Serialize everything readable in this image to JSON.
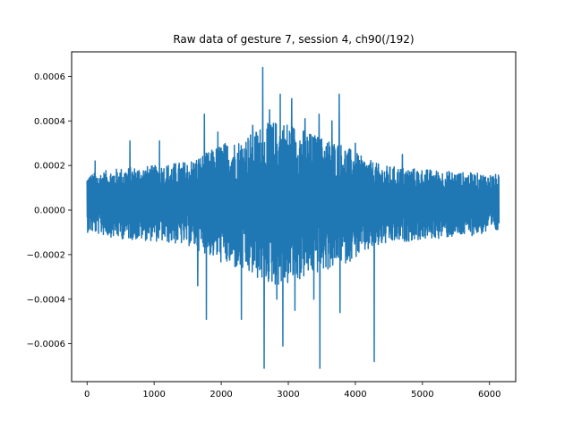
{
  "chart_data": {
    "type": "line",
    "title": "Raw data of gesture 7, session 4, ch90(/192)",
    "xlabel": "",
    "ylabel": "",
    "xlim": [
      -230,
      6390
    ],
    "ylim": [
      -0.00077,
      0.00071
    ],
    "grid": false,
    "legend": "none",
    "x_ticks": [
      {
        "value": 0,
        "label": "0"
      },
      {
        "value": 1000,
        "label": "1000"
      },
      {
        "value": 2000,
        "label": "2000"
      },
      {
        "value": 3000,
        "label": "3000"
      },
      {
        "value": 4000,
        "label": "4000"
      },
      {
        "value": 5000,
        "label": "5000"
      },
      {
        "value": 6000,
        "label": "6000"
      }
    ],
    "y_ticks": [
      {
        "value": -0.0006,
        "label": "−0.0006"
      },
      {
        "value": -0.0004,
        "label": "−0.0004"
      },
      {
        "value": -0.0002,
        "label": "−0.0002"
      },
      {
        "value": 0.0,
        "label": "0.0000"
      },
      {
        "value": 0.0002,
        "label": "0.0002"
      },
      {
        "value": 0.0004,
        "label": "0.0004"
      },
      {
        "value": 0.0006,
        "label": "0.0006"
      }
    ],
    "series": [
      {
        "color": "#1f77b4",
        "x_range": [
          0,
          6143
        ],
        "envelope_x": [
          0,
          500,
          1000,
          1500,
          1800,
          2000,
          2300,
          2600,
          2800,
          3000,
          3300,
          3600,
          3800,
          4100,
          4400,
          4800,
          5200,
          5600,
          6143
        ],
        "envelope_pos": [
          0.00016,
          0.00019,
          0.0002,
          0.00022,
          0.00026,
          0.0003,
          0.00032,
          0.00038,
          0.0004,
          0.0004,
          0.00035,
          0.00032,
          0.0003,
          0.00024,
          0.0002,
          0.00019,
          0.00018,
          0.00017,
          0.00016
        ],
        "envelope_neg": [
          -0.0001,
          -0.00013,
          -0.00014,
          -0.00016,
          -0.0002,
          -0.00024,
          -0.00028,
          -0.00032,
          -0.00034,
          -0.00034,
          -0.0003,
          -0.00027,
          -0.00025,
          -0.0002,
          -0.00016,
          -0.00014,
          -0.00013,
          -0.00012,
          -0.0001
        ],
        "peaks": [
          {
            "x": 120,
            "y": 0.00022
          },
          {
            "x": 640,
            "y": 0.00031
          },
          {
            "x": 1080,
            "y": 0.00031
          },
          {
            "x": 1650,
            "y": -0.00034
          },
          {
            "x": 1750,
            "y": 0.00043
          },
          {
            "x": 1780,
            "y": -0.00049
          },
          {
            "x": 1950,
            "y": 0.00035
          },
          {
            "x": 2300,
            "y": -0.00049
          },
          {
            "x": 2470,
            "y": 0.00038
          },
          {
            "x": 2620,
            "y": 0.00064
          },
          {
            "x": 2640,
            "y": -0.00071
          },
          {
            "x": 2720,
            "y": 0.00045
          },
          {
            "x": 2830,
            "y": -0.0004
          },
          {
            "x": 2880,
            "y": 0.00052
          },
          {
            "x": 2920,
            "y": -0.00061
          },
          {
            "x": 3050,
            "y": 0.0005
          },
          {
            "x": 3100,
            "y": -0.00045
          },
          {
            "x": 3250,
            "y": 0.00041
          },
          {
            "x": 3380,
            "y": -0.0004
          },
          {
            "x": 3460,
            "y": 0.00043
          },
          {
            "x": 3470,
            "y": -0.00071
          },
          {
            "x": 3650,
            "y": 0.0004
          },
          {
            "x": 3760,
            "y": 0.00052
          },
          {
            "x": 3770,
            "y": -0.00046
          },
          {
            "x": 4000,
            "y": 0.0003
          },
          {
            "x": 4280,
            "y": -0.00068
          },
          {
            "x": 4700,
            "y": 0.00025
          }
        ]
      }
    ]
  }
}
